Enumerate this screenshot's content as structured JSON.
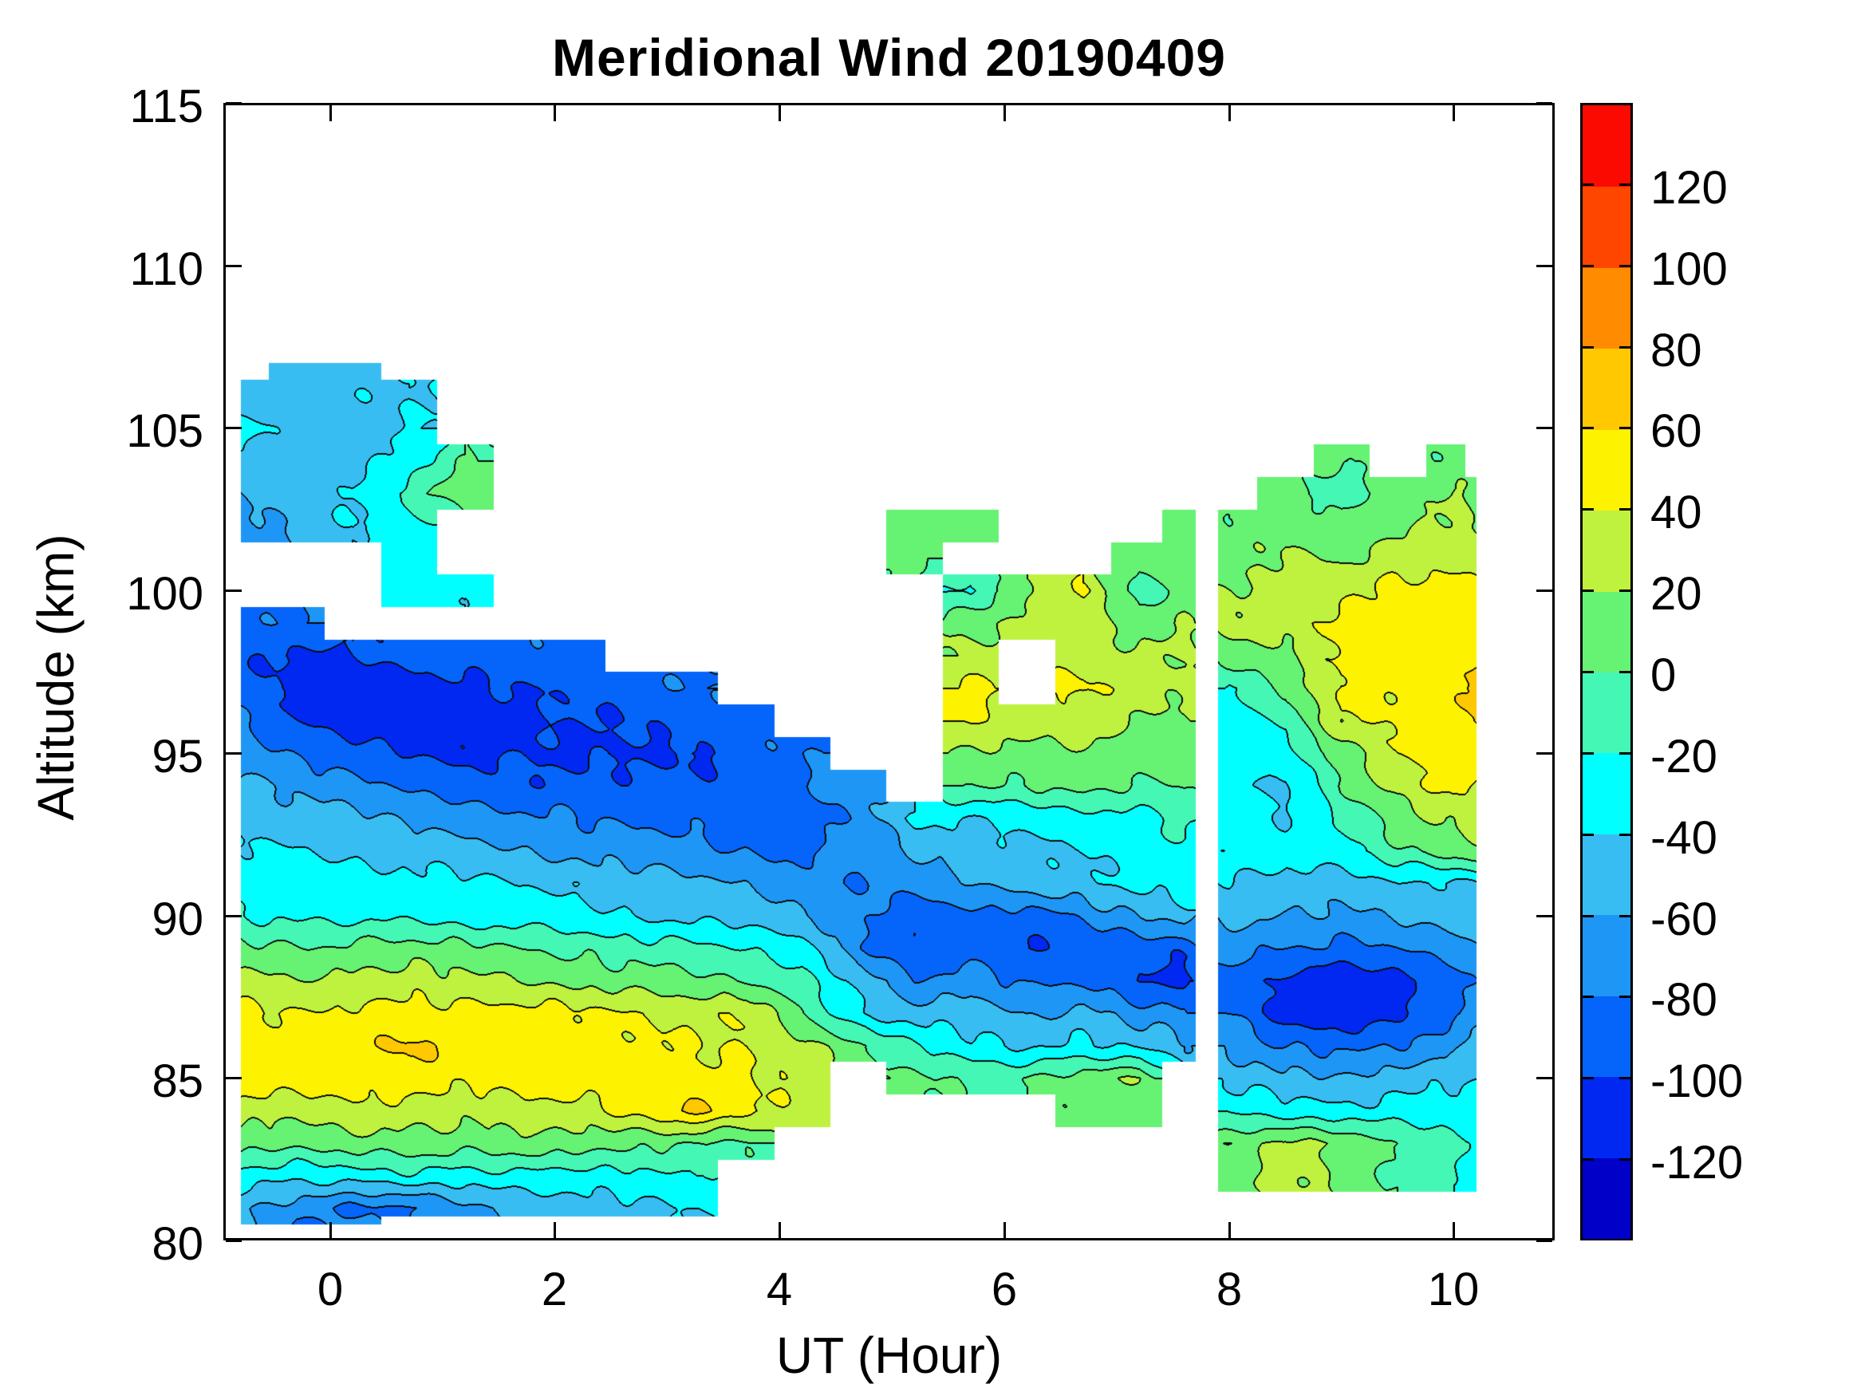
{
  "title": "Meridional Wind 20190409",
  "axes": {
    "xlabel": "UT (Hour)",
    "ylabel": "Altitude (km)",
    "xlim": [
      -0.95,
      10.9
    ],
    "ylim": [
      80,
      115
    ],
    "xticks": [
      0,
      2,
      4,
      6,
      8,
      10
    ],
    "yticks": [
      80,
      85,
      90,
      95,
      100,
      105,
      110,
      115
    ]
  },
  "colorbar": {
    "tick_labels": [
      120,
      100,
      80,
      60,
      40,
      20,
      0,
      -20,
      -40,
      -60,
      -80,
      -100,
      -120
    ],
    "vmin": -140,
    "vmax": 140,
    "level_step": 20,
    "colors": [
      "#0000C8",
      "#0028F0",
      "#0564FA",
      "#1E96F5",
      "#38BDF2",
      "#00FFFF",
      "#44F7B5",
      "#66F273",
      "#BFF23F",
      "#FDF200",
      "#FFC800",
      "#FF8C00",
      "#FF4600",
      "#FA0A00"
    ]
  },
  "chart_data": {
    "type": "heatmap",
    "subtype": "filled-contour",
    "title": "Meridional Wind 20190409",
    "xlabel": "UT (Hour)",
    "ylabel": "Altitude (km)",
    "xlim": [
      -0.95,
      10.9
    ],
    "ylim": [
      80,
      115
    ],
    "levels_min": -140,
    "levels_max": 140,
    "levels_step": 20,
    "grid": false,
    "x": [
      -0.8,
      -0.3,
      0.2,
      0.7,
      1.2,
      1.7,
      2.2,
      2.7,
      3.2,
      3.7,
      4.2,
      4.7,
      5.2,
      5.7,
      6.2,
      6.7,
      7.2,
      7.6,
      7.8,
      8.0,
      8.5,
      9.0,
      9.5,
      10.0,
      10.2
    ],
    "y": [
      107,
      106,
      105,
      104,
      103,
      102,
      101,
      100,
      99,
      98,
      97,
      96,
      95,
      94,
      93,
      92,
      91,
      90,
      89,
      88,
      87,
      86,
      85,
      84,
      83,
      82,
      81,
      80.5
    ],
    "z": [
      [
        null,
        -45,
        -45,
        null,
        null,
        null,
        null,
        null,
        null,
        null,
        null,
        null,
        null,
        null,
        null,
        null,
        null,
        null,
        null,
        null,
        null,
        null,
        null,
        null,
        null
      ],
      [
        -50,
        -50,
        -45,
        -40,
        null,
        null,
        null,
        null,
        null,
        null,
        null,
        null,
        null,
        null,
        null,
        null,
        null,
        null,
        null,
        null,
        null,
        null,
        null,
        null,
        null
      ],
      [
        -35,
        -45,
        -50,
        -40,
        null,
        null,
        null,
        null,
        null,
        null,
        null,
        null,
        null,
        null,
        null,
        null,
        null,
        null,
        null,
        null,
        null,
        null,
        null,
        null,
        null
      ],
      [
        -50,
        -45,
        -50,
        -30,
        0,
        null,
        null,
        null,
        null,
        null,
        null,
        null,
        null,
        null,
        null,
        null,
        null,
        null,
        null,
        null,
        null,
        5,
        null,
        5,
        null
      ],
      [
        -60,
        -50,
        -40,
        -10,
        15,
        null,
        null,
        null,
        null,
        null,
        null,
        null,
        null,
        null,
        null,
        null,
        null,
        null,
        null,
        null,
        10,
        -15,
        10,
        20,
        15
      ],
      [
        -70,
        -55,
        -40,
        -30,
        null,
        null,
        null,
        null,
        null,
        null,
        null,
        null,
        10,
        10,
        null,
        null,
        null,
        5,
        null,
        5,
        15,
        10,
        15,
        25,
        20
      ],
      [
        null,
        null,
        null,
        -30,
        null,
        null,
        null,
        null,
        null,
        null,
        null,
        null,
        5,
        null,
        null,
        null,
        5,
        15,
        null,
        10,
        25,
        15,
        35,
        30,
        25
      ],
      [
        null,
        null,
        null,
        -30,
        -35,
        null,
        null,
        null,
        null,
        null,
        null,
        null,
        null,
        -25,
        20,
        45,
        -15,
        10,
        null,
        20,
        30,
        35,
        45,
        50,
        45
      ],
      [
        -85,
        -80,
        null,
        null,
        null,
        null,
        null,
        null,
        null,
        null,
        null,
        null,
        null,
        15,
        25,
        30,
        10,
        20,
        null,
        25,
        30,
        45,
        50,
        55,
        50
      ],
      [
        -95,
        -105,
        -100,
        -95,
        -90,
        -85,
        -85,
        null,
        null,
        null,
        null,
        null,
        null,
        25,
        null,
        30,
        25,
        20,
        null,
        10,
        15,
        45,
        45,
        50,
        55
      ],
      [
        -90,
        -110,
        -115,
        -110,
        -105,
        -100,
        -95,
        -90,
        -80,
        null,
        null,
        null,
        null,
        45,
        null,
        45,
        30,
        25,
        null,
        -25,
        5,
        45,
        45,
        55,
        70
      ],
      [
        -80,
        -100,
        -110,
        -105,
        -110,
        -105,
        -100,
        -100,
        -90,
        -85,
        null,
        null,
        null,
        45,
        25,
        35,
        20,
        15,
        null,
        -30,
        -15,
        40,
        45,
        55,
        65
      ],
      [
        -70,
        -85,
        -95,
        -100,
        -105,
        -100,
        -105,
        -100,
        -105,
        -90,
        -80,
        null,
        null,
        15,
        15,
        15,
        10,
        10,
        null,
        -30,
        -30,
        10,
        40,
        50,
        50
      ],
      [
        -55,
        -65,
        -75,
        -85,
        -90,
        -95,
        -95,
        -95,
        -95,
        -95,
        -85,
        -65,
        null,
        0,
        0,
        10,
        -5,
        5,
        null,
        -35,
        -45,
        0,
        30,
        45,
        40
      ],
      [
        -45,
        -50,
        -55,
        -65,
        -70,
        -75,
        -80,
        -85,
        -85,
        -90,
        -90,
        -75,
        -35,
        -40,
        -35,
        -30,
        -25,
        -15,
        null,
        -30,
        -40,
        -20,
        10,
        25,
        30
      ],
      [
        -35,
        -40,
        -45,
        -45,
        -55,
        -60,
        -65,
        -70,
        -75,
        -80,
        -85,
        -70,
        -60,
        -50,
        -45,
        -40,
        -30,
        -25,
        null,
        -25,
        -30,
        -25,
        -5,
        10,
        15
      ],
      [
        -30,
        -30,
        -30,
        -35,
        -35,
        -40,
        -45,
        -50,
        -55,
        -60,
        -70,
        -80,
        -70,
        -60,
        -50,
        -45,
        -35,
        -30,
        null,
        -40,
        -50,
        -50,
        -40,
        -45,
        -40
      ],
      [
        -20,
        -25,
        -25,
        -25,
        -30,
        -30,
        -35,
        -40,
        -45,
        -50,
        -60,
        -75,
        -95,
        -85,
        -90,
        -75,
        -60,
        -50,
        null,
        -55,
        -60,
        -65,
        -55,
        -50,
        -45
      ],
      [
        5,
        0,
        5,
        10,
        5,
        0,
        -5,
        -10,
        -15,
        -20,
        -30,
        -75,
        -100,
        -90,
        -100,
        -95,
        -90,
        -95,
        null,
        -70,
        -80,
        -85,
        -80,
        -70,
        -60
      ],
      [
        25,
        20,
        25,
        30,
        25,
        20,
        15,
        10,
        5,
        0,
        -15,
        -45,
        -80,
        -70,
        -85,
        -80,
        -100,
        -105,
        null,
        -85,
        -105,
        -115,
        -110,
        -90,
        -75
      ],
      [
        45,
        40,
        45,
        50,
        45,
        50,
        45,
        40,
        35,
        40,
        0,
        -40,
        -50,
        -50,
        -65,
        -55,
        -70,
        -75,
        null,
        -80,
        -110,
        -115,
        -105,
        -85,
        -70
      ],
      [
        50,
        45,
        55,
        65,
        50,
        45,
        50,
        45,
        40,
        40,
        25,
        5,
        -20,
        -35,
        -45,
        -35,
        -45,
        -55,
        null,
        -65,
        -80,
        -85,
        -80,
        -65,
        -55
      ],
      [
        50,
        55,
        50,
        55,
        45,
        50,
        55,
        50,
        45,
        45,
        35,
        null,
        5,
        -5,
        0,
        10,
        20,
        null,
        null,
        -45,
        -55,
        -60,
        -50,
        -45,
        -40
      ],
      [
        30,
        25,
        35,
        30,
        25,
        35,
        30,
        45,
        65,
        45,
        30,
        null,
        null,
        null,
        null,
        5,
        10,
        null,
        null,
        -25,
        -30,
        -35,
        -30,
        -25,
        -30
      ],
      [
        10,
        5,
        10,
        15,
        10,
        15,
        10,
        5,
        0,
        -5,
        null,
        null,
        null,
        null,
        null,
        null,
        null,
        null,
        null,
        15,
        25,
        20,
        0,
        -15,
        -20
      ],
      [
        -30,
        -35,
        -30,
        -25,
        -30,
        -25,
        -30,
        -25,
        -20,
        null,
        null,
        null,
        null,
        null,
        null,
        null,
        null,
        null,
        null,
        10,
        30,
        15,
        -5,
        -20,
        -25
      ],
      [
        -55,
        -70,
        -85,
        -85,
        -65,
        -55,
        -50,
        -45,
        -40,
        null,
        null,
        null,
        null,
        null,
        null,
        null,
        null,
        null,
        null,
        null,
        null,
        null,
        null,
        null,
        null
      ],
      [
        -50,
        -85,
        -75,
        null,
        null,
        null,
        null,
        null,
        null,
        null,
        null,
        null,
        null,
        null,
        null,
        null,
        null,
        null,
        null,
        null,
        null,
        null,
        null,
        null,
        null
      ]
    ]
  }
}
